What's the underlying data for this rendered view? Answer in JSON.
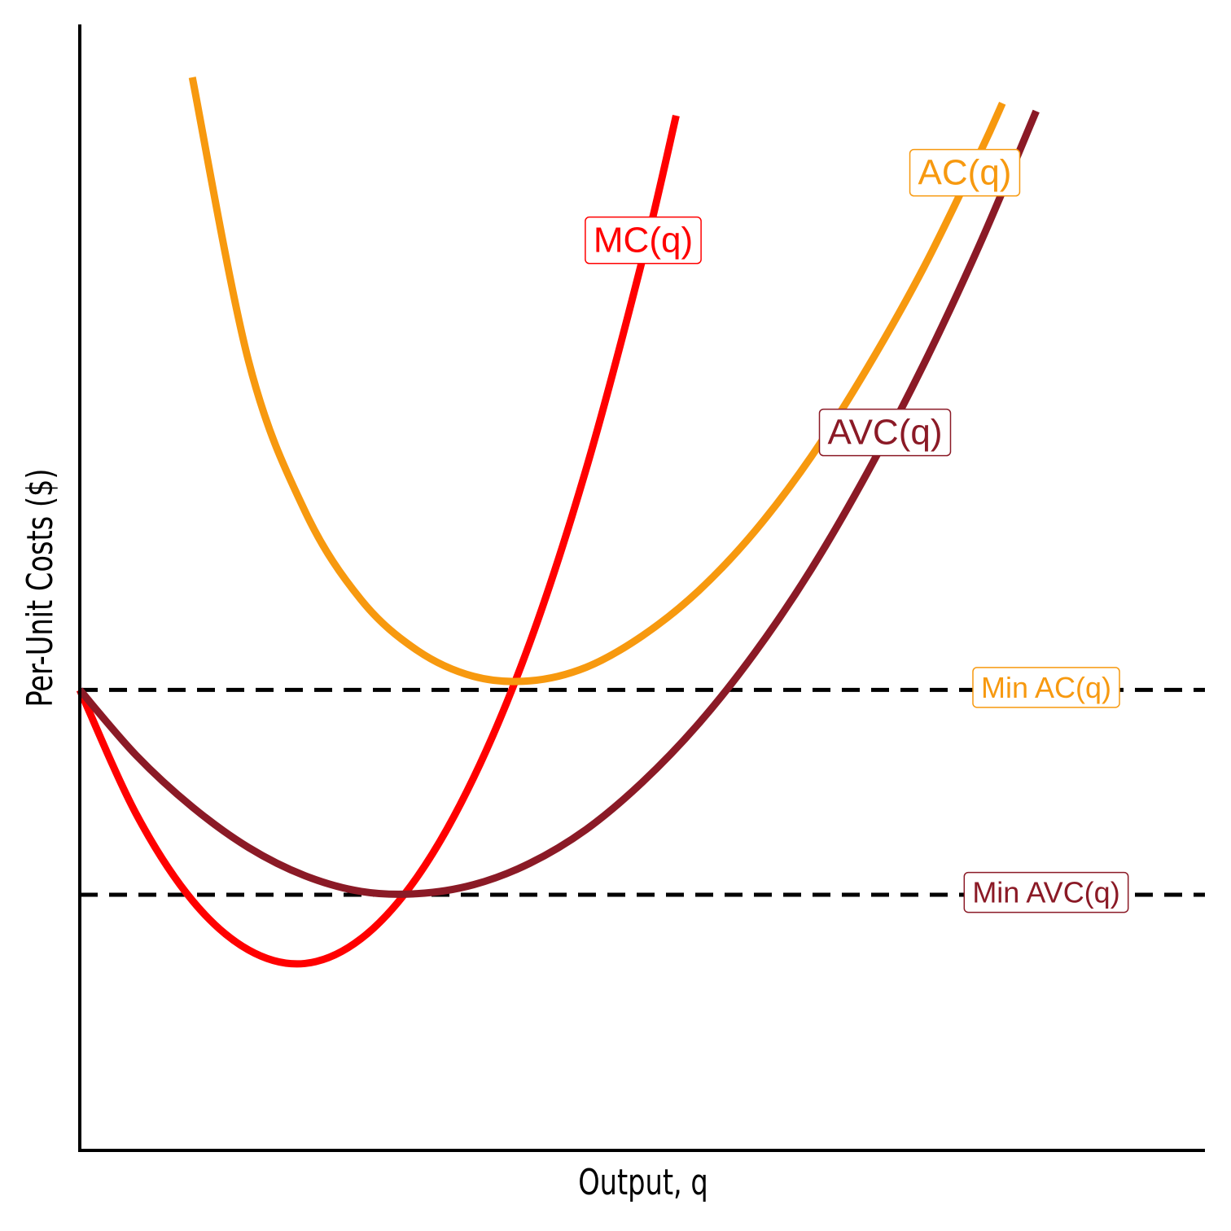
{
  "chart_data": {
    "type": "line",
    "xlabel": "Output, q",
    "ylabel": "Per-Unit Costs ($)",
    "xlim": [
      0,
      10
    ],
    "ylim": [
      0,
      10
    ],
    "series": [
      {
        "name": "MC(q)",
        "color": "#ff0000",
        "x": [
          0,
          0.5,
          1,
          1.5,
          2,
          2.5,
          3,
          3.5,
          4,
          4.5,
          5,
          5.3
        ],
        "values": [
          4.09,
          2.99,
          2.22,
          1.78,
          1.66,
          1.88,
          2.43,
          3.31,
          4.51,
          6.05,
          7.91,
          9.19
        ]
      },
      {
        "name": "AC(q)",
        "color": "#f7990f",
        "x": [
          1,
          1.5,
          2,
          2.5,
          3,
          3.5,
          4,
          4.5,
          5,
          5.5,
          6,
          6.5,
          7,
          7.5,
          8,
          8.2
        ],
        "values": [
          9.53,
          7.01,
          5.68,
          4.89,
          4.44,
          4.21,
          4.17,
          4.29,
          4.57,
          4.97,
          5.5,
          6.16,
          6.95,
          7.84,
          8.86,
          9.3
        ]
      },
      {
        "name": "AVC(q)",
        "color": "#8b1a26",
        "x": [
          0,
          0.5,
          1,
          1.5,
          2,
          2.5,
          3,
          3.5,
          4,
          4.5,
          5,
          5.5,
          6,
          6.5,
          7,
          7.5,
          8,
          8.5
        ],
        "values": [
          4.09,
          3.51,
          3.05,
          2.69,
          2.44,
          2.3,
          2.28,
          2.36,
          2.55,
          2.85,
          3.27,
          3.79,
          4.42,
          5.16,
          6.02,
          6.98,
          8.05,
          9.23
        ]
      }
    ],
    "hlines": [
      {
        "label": "Min AC(q)",
        "value": 4.09,
        "color": "#f7990f"
      },
      {
        "label": "Min AVC(q)",
        "value": 2.27,
        "color": "#8b1a26"
      }
    ]
  }
}
